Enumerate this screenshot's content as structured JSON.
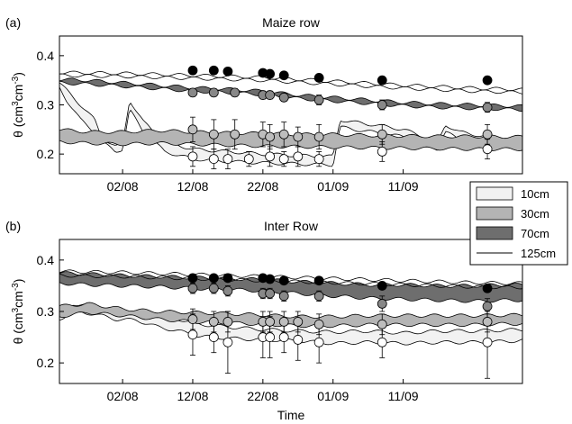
{
  "legend": {
    "placement": "right-between-panels",
    "entries": [
      {
        "label": "10cm",
        "swatch": "fill",
        "color": "#f2f2f2"
      },
      {
        "label": "30cm",
        "swatch": "fill",
        "color": "#b4b4b4"
      },
      {
        "label": "70cm",
        "swatch": "fill",
        "color": "#6e6e6e"
      },
      {
        "label": "125cm",
        "swatch": "line",
        "color": "#000000"
      }
    ]
  },
  "chart_data": [
    {
      "type": "area",
      "panel_label": "(a)",
      "title": "Maize row",
      "xlabel": "",
      "ylabel": "θ (cm³cm⁻³)",
      "ylabel_parts": {
        "main": "θ (cm",
        "sup1": "3",
        "mid": "cm",
        "sup2": "-3",
        "end": ")"
      },
      "x_unit": "days (day 1 = 24/07)",
      "xlim": [
        1,
        67
      ],
      "ylim": [
        0.16,
        0.44
      ],
      "xticks": [
        {
          "value": 10,
          "label": "02/08"
        },
        {
          "value": 20,
          "label": "12/08"
        },
        {
          "value": 30,
          "label": "22/08"
        },
        {
          "value": 40,
          "label": "01/09"
        },
        {
          "value": 50,
          "label": "11/09"
        }
      ],
      "yticks": [
        {
          "value": 0.2,
          "label": "0.2"
        },
        {
          "value": 0.3,
          "label": "0.3"
        },
        {
          "value": 0.4,
          "label": "0.4"
        }
      ],
      "grid": false,
      "series": [
        {
          "name": "10cm",
          "color": "#f2f2f2",
          "x": [
            1,
            2,
            4,
            6,
            7,
            9,
            10,
            11,
            13,
            16,
            20,
            25,
            30,
            35,
            40,
            41,
            43,
            48,
            50,
            53,
            55,
            56,
            58,
            62,
            65,
            67
          ],
          "upper": [
            0.345,
            0.33,
            0.3,
            0.27,
            0.235,
            0.215,
            0.22,
            0.31,
            0.265,
            0.225,
            0.21,
            0.205,
            0.2,
            0.197,
            0.195,
            0.27,
            0.265,
            0.255,
            0.25,
            0.235,
            0.225,
            0.26,
            0.245,
            0.235,
            0.232,
            0.23
          ],
          "lower": [
            0.335,
            0.31,
            0.27,
            0.245,
            0.225,
            0.205,
            0.21,
            0.29,
            0.245,
            0.205,
            0.19,
            0.185,
            0.182,
            0.18,
            0.178,
            0.255,
            0.25,
            0.24,
            0.235,
            0.22,
            0.21,
            0.245,
            0.23,
            0.22,
            0.218,
            0.215
          ],
          "points": [
            {
              "x": 20,
              "y": 0.195,
              "err": 0.02
            },
            {
              "x": 23,
              "y": 0.19,
              "err": 0.02
            },
            {
              "x": 25,
              "y": 0.19,
              "err": 0.02
            },
            {
              "x": 28,
              "y": 0.19,
              "err": 0.015
            },
            {
              "x": 31,
              "y": 0.195,
              "err": 0.02
            },
            {
              "x": 33,
              "y": 0.19,
              "err": 0.015
            },
            {
              "x": 35,
              "y": 0.195,
              "err": 0.02
            },
            {
              "x": 38,
              "y": 0.19,
              "err": 0.015
            },
            {
              "x": 47,
              "y": 0.205,
              "err": 0.02
            },
            {
              "x": 62,
              "y": 0.21,
              "err": 0.02
            }
          ]
        },
        {
          "name": "30cm",
          "color": "#b4b4b4",
          "x": [
            1,
            5,
            10,
            15,
            20,
            25,
            30,
            35,
            40,
            45,
            50,
            55,
            60,
            65,
            67
          ],
          "upper": [
            0.25,
            0.245,
            0.245,
            0.248,
            0.245,
            0.243,
            0.242,
            0.24,
            0.24,
            0.238,
            0.237,
            0.236,
            0.236,
            0.235,
            0.235
          ],
          "lower": [
            0.225,
            0.222,
            0.22,
            0.222,
            0.22,
            0.218,
            0.216,
            0.215,
            0.214,
            0.213,
            0.212,
            0.211,
            0.21,
            0.21,
            0.21
          ],
          "points": [
            {
              "x": 20,
              "y": 0.25,
              "err": 0.025
            },
            {
              "x": 23,
              "y": 0.24,
              "err": 0.03
            },
            {
              "x": 26,
              "y": 0.24,
              "err": 0.03
            },
            {
              "x": 30,
              "y": 0.24,
              "err": 0.025
            },
            {
              "x": 31,
              "y": 0.235,
              "err": 0.025
            },
            {
              "x": 33,
              "y": 0.24,
              "err": 0.025
            },
            {
              "x": 35,
              "y": 0.235,
              "err": 0.02
            },
            {
              "x": 38,
              "y": 0.235,
              "err": 0.025
            },
            {
              "x": 47,
              "y": 0.24,
              "err": 0.02
            },
            {
              "x": 62,
              "y": 0.24,
              "err": 0.02
            }
          ]
        },
        {
          "name": "70cm",
          "color": "#6e6e6e",
          "x": [
            1,
            5,
            10,
            15,
            20,
            25,
            30,
            35,
            40,
            45,
            50,
            55,
            60,
            65,
            67
          ],
          "upper": [
            0.352,
            0.35,
            0.345,
            0.34,
            0.335,
            0.332,
            0.328,
            0.32,
            0.315,
            0.31,
            0.305,
            0.302,
            0.3,
            0.298,
            0.297
          ],
          "lower": [
            0.345,
            0.342,
            0.338,
            0.333,
            0.328,
            0.325,
            0.321,
            0.313,
            0.308,
            0.303,
            0.298,
            0.295,
            0.293,
            0.291,
            0.29
          ],
          "points": [
            {
              "x": 20,
              "y": 0.325,
              "err": 0.008
            },
            {
              "x": 23,
              "y": 0.325,
              "err": 0.008
            },
            {
              "x": 26,
              "y": 0.325,
              "err": 0.008
            },
            {
              "x": 30,
              "y": 0.32,
              "err": 0.008
            },
            {
              "x": 31,
              "y": 0.32,
              "err": 0.008
            },
            {
              "x": 33,
              "y": 0.315,
              "err": 0.008
            },
            {
              "x": 38,
              "y": 0.31,
              "err": 0.01
            },
            {
              "x": 47,
              "y": 0.3,
              "err": 0.01
            },
            {
              "x": 62,
              "y": 0.295,
              "err": 0.01
            }
          ]
        },
        {
          "name": "125cm",
          "color": "#000000",
          "x": [
            1,
            5,
            10,
            15,
            20,
            25,
            30,
            35,
            40,
            45,
            50,
            55,
            60,
            65,
            67
          ],
          "upper": [
            0.366,
            0.365,
            0.364,
            0.362,
            0.36,
            0.358,
            0.356,
            0.352,
            0.348,
            0.344,
            0.34,
            0.337,
            0.334,
            0.332,
            0.331
          ],
          "lower": [
            0.36,
            0.359,
            0.358,
            0.356,
            0.354,
            0.352,
            0.35,
            0.346,
            0.342,
            0.338,
            0.334,
            0.331,
            0.328,
            0.326,
            0.325
          ],
          "points": [
            {
              "x": 20,
              "y": 0.37,
              "err": 0
            },
            {
              "x": 23,
              "y": 0.37,
              "err": 0
            },
            {
              "x": 25,
              "y": 0.368,
              "err": 0
            },
            {
              "x": 30,
              "y": 0.365,
              "err": 0
            },
            {
              "x": 31,
              "y": 0.363,
              "err": 0
            },
            {
              "x": 33,
              "y": 0.36,
              "err": 0
            },
            {
              "x": 38,
              "y": 0.355,
              "err": 0
            },
            {
              "x": 47,
              "y": 0.35,
              "err": 0
            },
            {
              "x": 62,
              "y": 0.35,
              "err": 0
            }
          ]
        }
      ]
    },
    {
      "type": "area",
      "panel_label": "(b)",
      "title": "Inter Row",
      "xlabel": "Time",
      "ylabel": "θ (cm³cm⁻³)",
      "ylabel_parts": {
        "main": "θ (cm",
        "sup1": "3",
        "mid": "cm",
        "sup2": "-3",
        "end": ")"
      },
      "x_unit": "days (day 1 = 24/07)",
      "xlim": [
        1,
        67
      ],
      "ylim": [
        0.16,
        0.44
      ],
      "xticks": [
        {
          "value": 10,
          "label": "02/08"
        },
        {
          "value": 20,
          "label": "12/08"
        },
        {
          "value": 30,
          "label": "22/08"
        },
        {
          "value": 40,
          "label": "01/09"
        },
        {
          "value": 50,
          "label": "11/09"
        }
      ],
      "yticks": [
        {
          "value": 0.2,
          "label": "0.2"
        },
        {
          "value": 0.3,
          "label": "0.3"
        },
        {
          "value": 0.4,
          "label": "0.4"
        }
      ],
      "grid": false,
      "series": [
        {
          "name": "10cm",
          "color": "#f2f2f2",
          "x": [
            1,
            3,
            6,
            9,
            12,
            15,
            18,
            21,
            25,
            30,
            35,
            40,
            45,
            50,
            55,
            60,
            65,
            67
          ],
          "upper": [
            0.3,
            0.315,
            0.31,
            0.295,
            0.3,
            0.292,
            0.285,
            0.275,
            0.27,
            0.265,
            0.262,
            0.26,
            0.262,
            0.258,
            0.262,
            0.262,
            0.264,
            0.265
          ],
          "lower": [
            0.285,
            0.3,
            0.295,
            0.285,
            0.283,
            0.27,
            0.262,
            0.252,
            0.248,
            0.245,
            0.243,
            0.238,
            0.24,
            0.238,
            0.24,
            0.24,
            0.242,
            0.244
          ],
          "points": [
            {
              "x": 20,
              "y": 0.255,
              "err": 0.04
            },
            {
              "x": 23,
              "y": 0.25,
              "err": 0.03
            },
            {
              "x": 25,
              "y": 0.24,
              "err": 0.06
            },
            {
              "x": 30,
              "y": 0.25,
              "err": 0.04
            },
            {
              "x": 31,
              "y": 0.25,
              "err": 0.04
            },
            {
              "x": 33,
              "y": 0.25,
              "err": 0.03
            },
            {
              "x": 35,
              "y": 0.245,
              "err": 0.04
            },
            {
              "x": 38,
              "y": 0.24,
              "err": 0.04
            },
            {
              "x": 47,
              "y": 0.24,
              "err": 0.03
            },
            {
              "x": 62,
              "y": 0.24,
              "err": 0.07
            }
          ]
        },
        {
          "name": "30cm",
          "color": "#b4b4b4",
          "x": [
            1,
            5,
            10,
            15,
            20,
            25,
            30,
            35,
            40,
            45,
            50,
            55,
            60,
            65,
            67
          ],
          "upper": [
            0.31,
            0.315,
            0.305,
            0.3,
            0.298,
            0.296,
            0.293,
            0.29,
            0.29,
            0.292,
            0.292,
            0.292,
            0.292,
            0.293,
            0.293
          ],
          "lower": [
            0.29,
            0.298,
            0.292,
            0.285,
            0.28,
            0.278,
            0.275,
            0.272,
            0.272,
            0.274,
            0.274,
            0.274,
            0.274,
            0.276,
            0.276
          ],
          "points": [
            {
              "x": 20,
              "y": 0.285,
              "err": 0.02
            },
            {
              "x": 23,
              "y": 0.28,
              "err": 0.02
            },
            {
              "x": 25,
              "y": 0.28,
              "err": 0.02
            },
            {
              "x": 30,
              "y": 0.28,
              "err": 0.02
            },
            {
              "x": 31,
              "y": 0.28,
              "err": 0.02
            },
            {
              "x": 33,
              "y": 0.28,
              "err": 0.02
            },
            {
              "x": 35,
              "y": 0.28,
              "err": 0.02
            },
            {
              "x": 38,
              "y": 0.275,
              "err": 0.02
            },
            {
              "x": 47,
              "y": 0.275,
              "err": 0.02
            },
            {
              "x": 62,
              "y": 0.28,
              "err": 0.02
            }
          ]
        },
        {
          "name": "70cm",
          "color": "#6e6e6e",
          "x": [
            1,
            5,
            10,
            15,
            20,
            25,
            30,
            35,
            40,
            45,
            50,
            55,
            60,
            65,
            67
          ],
          "upper": [
            0.375,
            0.373,
            0.37,
            0.368,
            0.366,
            0.364,
            0.362,
            0.358,
            0.355,
            0.352,
            0.352,
            0.35,
            0.35,
            0.352,
            0.352
          ],
          "lower": [
            0.355,
            0.352,
            0.35,
            0.348,
            0.345,
            0.343,
            0.34,
            0.335,
            0.33,
            0.326,
            0.324,
            0.322,
            0.32,
            0.322,
            0.322
          ],
          "points": [
            {
              "x": 20,
              "y": 0.345,
              "err": 0.01
            },
            {
              "x": 23,
              "y": 0.345,
              "err": 0.01
            },
            {
              "x": 25,
              "y": 0.34,
              "err": 0.01
            },
            {
              "x": 30,
              "y": 0.335,
              "err": 0.01
            },
            {
              "x": 31,
              "y": 0.335,
              "err": 0.01
            },
            {
              "x": 33,
              "y": 0.33,
              "err": 0.01
            },
            {
              "x": 38,
              "y": 0.33,
              "err": 0.01
            },
            {
              "x": 47,
              "y": 0.315,
              "err": 0.015
            },
            {
              "x": 62,
              "y": 0.31,
              "err": 0.015
            }
          ]
        },
        {
          "name": "125cm",
          "color": "#000000",
          "x": [
            1,
            5,
            10,
            15,
            20,
            25,
            30,
            35,
            40,
            45,
            50,
            55,
            60,
            65,
            67
          ],
          "upper": [
            0.378,
            0.377,
            0.376,
            0.374,
            0.372,
            0.37,
            0.368,
            0.366,
            0.364,
            0.362,
            0.36,
            0.358,
            0.356,
            0.355,
            0.355
          ],
          "lower": [
            0.37,
            0.369,
            0.368,
            0.366,
            0.364,
            0.362,
            0.36,
            0.358,
            0.356,
            0.354,
            0.352,
            0.35,
            0.348,
            0.347,
            0.347
          ],
          "points": [
            {
              "x": 20,
              "y": 0.365,
              "err": 0
            },
            {
              "x": 23,
              "y": 0.365,
              "err": 0
            },
            {
              "x": 25,
              "y": 0.365,
              "err": 0
            },
            {
              "x": 30,
              "y": 0.365,
              "err": 0
            },
            {
              "x": 31,
              "y": 0.363,
              "err": 0
            },
            {
              "x": 33,
              "y": 0.36,
              "err": 0
            },
            {
              "x": 38,
              "y": 0.36,
              "err": 0
            },
            {
              "x": 47,
              "y": 0.35,
              "err": 0
            },
            {
              "x": 62,
              "y": 0.345,
              "err": 0
            }
          ]
        }
      ]
    }
  ]
}
